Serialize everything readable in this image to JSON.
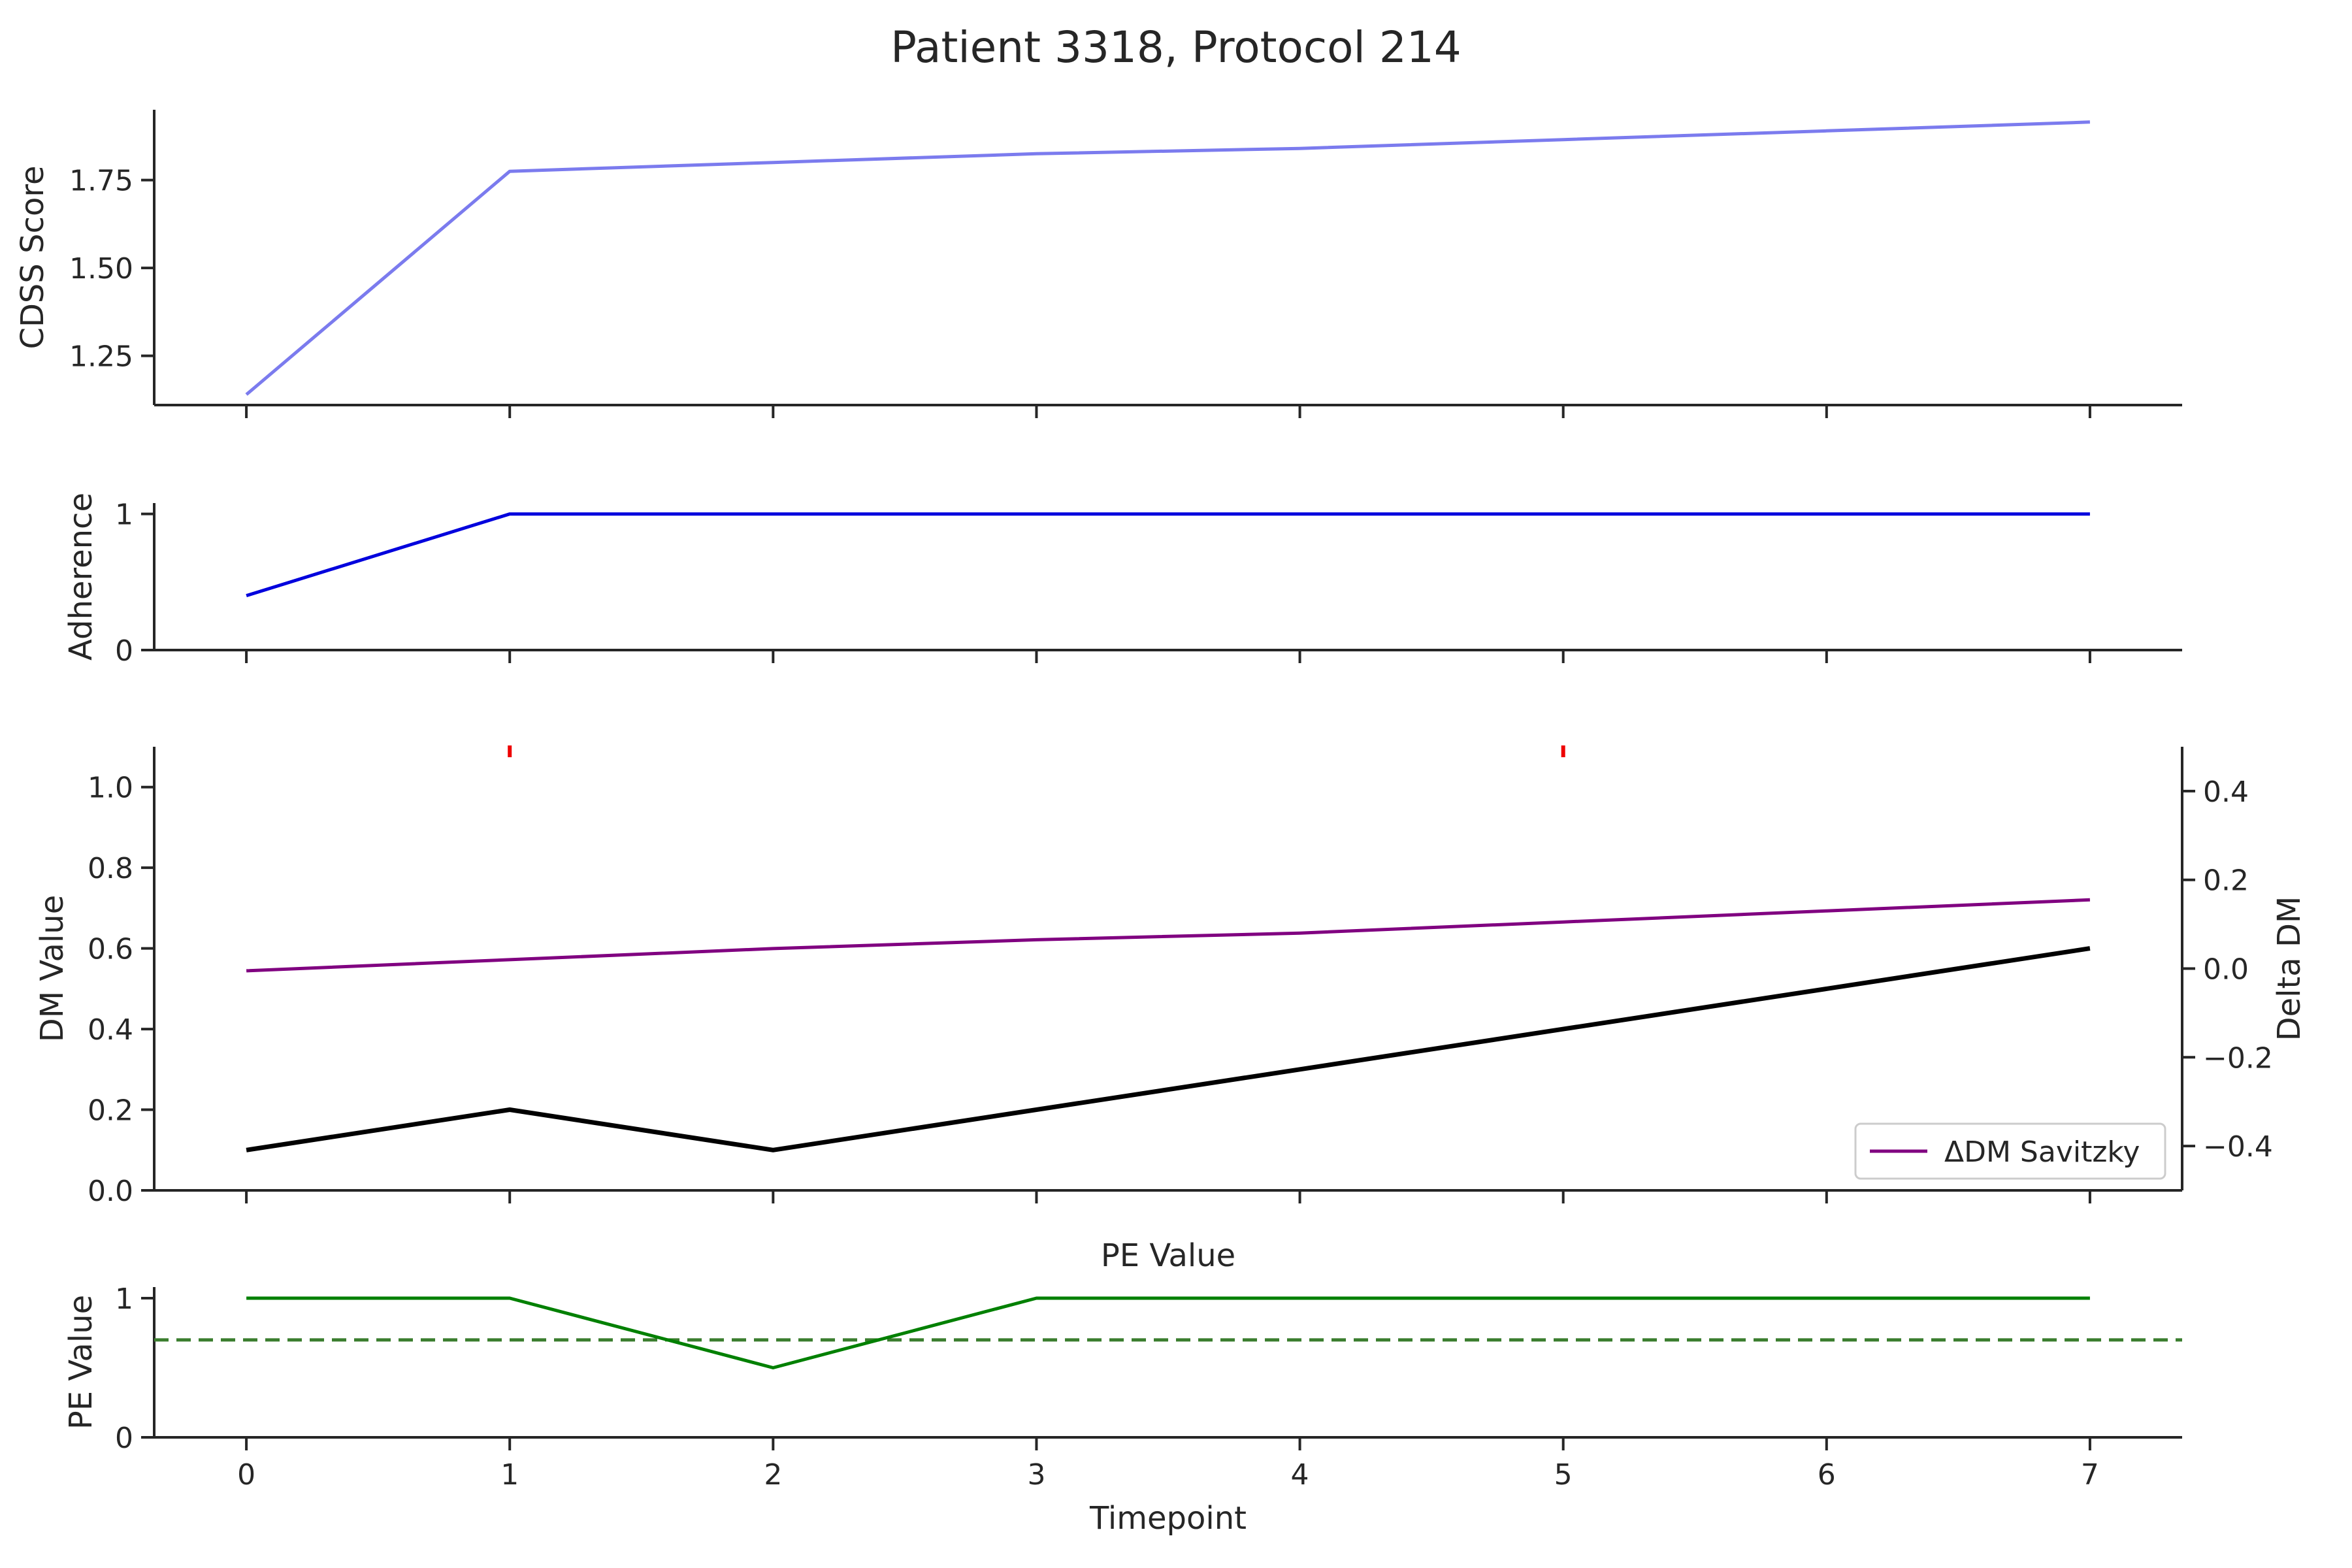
{
  "chart_data": [
    {
      "type": "line",
      "title": "Patient 3318, Protocol 214",
      "ylabel": "CDSS Score",
      "x": [
        0,
        1,
        2,
        3,
        4,
        5,
        6,
        7
      ],
      "xlim": [
        -0.35,
        7.35
      ],
      "ylim": [
        1.11,
        1.95
      ],
      "yticks": [
        "1.25",
        "1.50",
        "1.75"
      ],
      "series": [
        {
          "color": "#7b7bee",
          "values": [
            1.14,
            1.775,
            1.8,
            1.825,
            1.84,
            1.865,
            1.89,
            1.915
          ]
        }
      ]
    },
    {
      "type": "line",
      "ylabel": "Adherence",
      "x": [
        0,
        1,
        2,
        3,
        4,
        5,
        6,
        7
      ],
      "xlim": [
        -0.35,
        7.35
      ],
      "ylim": [
        0,
        1.08
      ],
      "yticks": [
        "0",
        "1"
      ],
      "series": [
        {
          "color": "#0000dd",
          "values": [
            0.4,
            1,
            1,
            1,
            1,
            1,
            1,
            1
          ]
        }
      ]
    },
    {
      "type": "line",
      "ylabel": "DM Value",
      "ylabel_right": "Delta DM",
      "x": [
        0,
        1,
        2,
        3,
        4,
        5,
        6,
        7
      ],
      "xlim": [
        -0.35,
        7.35
      ],
      "ylim": [
        0,
        1.1
      ],
      "ylim_right": [
        -0.5,
        0.5
      ],
      "yticks": [
        "0.0",
        "0.2",
        "0.4",
        "0.6",
        "0.8",
        "1.0"
      ],
      "yticks_right": [
        "−0.4",
        "−0.2",
        "0.0",
        "0.2",
        "0.4"
      ],
      "series": [
        {
          "color": "#000000",
          "axis": "left",
          "values": [
            0.1,
            0.2,
            0.1,
            0.2,
            0.3,
            0.4,
            0.5,
            0.6
          ]
        },
        {
          "name": "ΔDM Savitzky",
          "color": "#800080",
          "axis": "right",
          "values": [
            -0.005,
            0.02,
            0.045,
            0.065,
            0.08,
            0.105,
            0.13,
            0.155
          ]
        }
      ],
      "event_markers": {
        "color": "#ee0000",
        "x": [
          1,
          5
        ]
      },
      "legend": {
        "position": "lower-right",
        "label": "ΔDM Savitzky"
      }
    },
    {
      "type": "line",
      "title": "PE Value",
      "ylabel": "PE Value",
      "xlabel": "Timepoint",
      "x": [
        0,
        1,
        2,
        3,
        4,
        5,
        6,
        7
      ],
      "xticks": [
        "0",
        "1",
        "2",
        "3",
        "4",
        "5",
        "6",
        "7"
      ],
      "xlim": [
        -0.35,
        7.35
      ],
      "ylim": [
        0,
        1.08
      ],
      "yticks": [
        "0",
        "1"
      ],
      "threshold": 0.7,
      "threshold_color": "#3a7d2e",
      "series": [
        {
          "color": "#008000",
          "values": [
            1,
            1,
            0.5,
            1,
            1,
            1,
            1,
            1
          ]
        }
      ]
    }
  ]
}
